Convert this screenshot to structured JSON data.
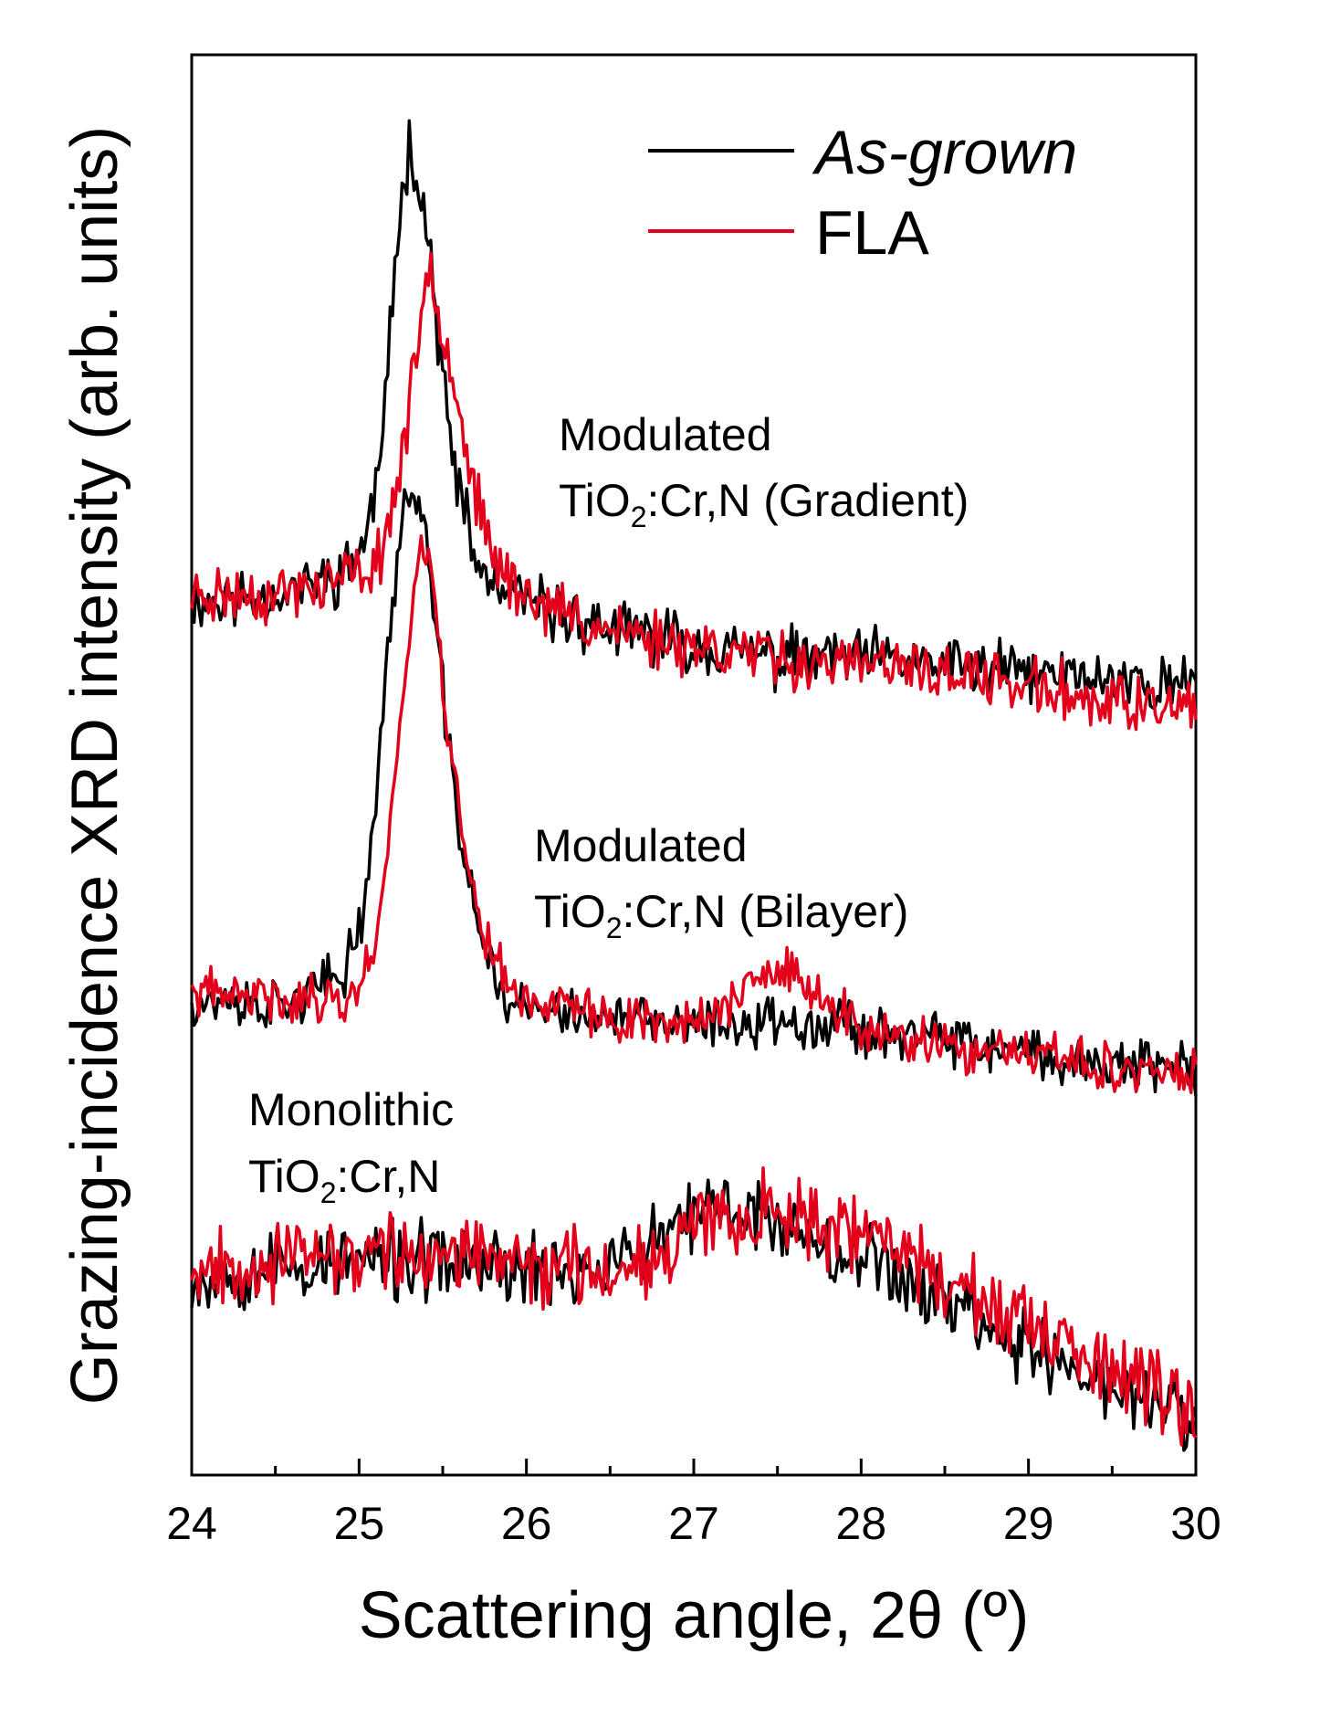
{
  "chart_data": {
    "type": "line",
    "title": "",
    "xlabel": "Scattering angle, 2θ (º)",
    "ylabel": "Grazing-incidence XRD intensity (arb. units)",
    "xlim": [
      24,
      30
    ],
    "ylim": [
      0,
      100
    ],
    "x_ticks": [
      "24",
      "25",
      "26",
      "27",
      "28",
      "29",
      "30"
    ],
    "y_ticks_labeled": false,
    "legend": {
      "position": "top-right",
      "entries": [
        {
          "label": "As-grown",
          "italic": true,
          "color": "#000000"
        },
        {
          "label": "FLA",
          "italic": false,
          "color": "#e3001b"
        }
      ]
    },
    "annotations": [
      {
        "id": "gradient",
        "line1": "Modulated",
        "line2_pre": "TiO",
        "line2_sub": "2",
        "line2_post": ":Cr,N (Gradient)",
        "x": 25.2,
        "y": 71.5
      },
      {
        "id": "bilayer",
        "line1": "Modulated",
        "line2_pre": "TiO",
        "line2_sub": "2",
        "line2_post": ":Cr,N (Bilayer)",
        "x": 25.05,
        "y": 43.5
      },
      {
        "id": "monolithic",
        "line1": "Monolithic",
        "line2_pre": "TiO",
        "line2_sub": "2",
        "line2_post": ":Cr,N",
        "x": 24.35,
        "y": 25.5
      }
    ],
    "series": [
      {
        "name": "As-grown",
        "sample": "Gradient",
        "color": "#000000",
        "noise": 1.6,
        "seed": 11,
        "x": [
          24.0,
          24.5,
          24.9,
          25.05,
          25.15,
          25.22,
          25.3,
          25.38,
          25.45,
          25.55,
          25.7,
          25.85,
          26.0,
          26.5,
          27.0,
          27.5,
          28.0,
          28.5,
          29.0,
          29.5,
          30.0
        ],
        "values": [
          61.5,
          62,
          63.5,
          66,
          74,
          86,
          94,
          90,
          83,
          72,
          64,
          62,
          61.5,
          59.5,
          58.5,
          57.5,
          57.5,
          57,
          56.5,
          56,
          55.5
        ]
      },
      {
        "name": "FLA",
        "sample": "Gradient",
        "color": "#e3001b",
        "noise": 1.6,
        "seed": 23,
        "x": [
          24.0,
          24.5,
          24.9,
          25.1,
          25.2,
          25.3,
          25.35,
          25.42,
          25.5,
          25.6,
          25.75,
          25.9,
          26.05,
          26.5,
          27.0,
          27.5,
          28.0,
          28.5,
          29.0,
          29.5,
          30.0
        ],
        "values": [
          62,
          62,
          63,
          64,
          68,
          75,
          79,
          86,
          81,
          75,
          66,
          63,
          61.5,
          59.5,
          58.5,
          57.5,
          57,
          56.5,
          55.5,
          54.5,
          53.5
        ]
      },
      {
        "name": "As-grown",
        "sample": "Bilayer",
        "color": "#000000",
        "noise": 1.4,
        "seed": 37,
        "x": [
          24.0,
          24.5,
          24.9,
          25.05,
          25.15,
          25.25,
          25.33,
          25.4,
          25.5,
          25.6,
          25.75,
          25.9,
          26.2,
          26.6,
          27.0,
          27.4,
          27.7,
          28.0,
          28.5,
          29.0,
          29.5,
          30.0
        ],
        "values": [
          33.5,
          33,
          35,
          41,
          55,
          67,
          70,
          66,
          55,
          45,
          37,
          33,
          32.5,
          32,
          31.5,
          32,
          32,
          31.5,
          30.5,
          29.5,
          29,
          28.5
        ]
      },
      {
        "name": "FLA",
        "sample": "Bilayer",
        "color": "#e3001b",
        "noise": 1.3,
        "seed": 41,
        "x": [
          24.0,
          24.5,
          24.95,
          25.1,
          25.2,
          25.3,
          25.37,
          25.43,
          25.5,
          25.6,
          25.75,
          25.9,
          26.2,
          26.6,
          27.0,
          27.25,
          27.45,
          27.6,
          27.8,
          28.1,
          28.5,
          29.0,
          29.5,
          30.0
        ],
        "values": [
          34,
          33.5,
          33.5,
          37,
          48,
          59,
          66,
          64,
          56,
          46,
          38,
          34,
          33,
          32,
          32,
          33.5,
          35.5,
          35,
          33,
          31,
          30,
          29.5,
          28.8,
          28
        ]
      },
      {
        "name": "As-grown",
        "sample": "Monolithic",
        "color": "#000000",
        "noise": 2.1,
        "seed": 53,
        "x": [
          24.0,
          24.5,
          25.0,
          25.5,
          26.0,
          26.5,
          26.8,
          27.0,
          27.2,
          27.5,
          27.8,
          28.1,
          28.5,
          29.0,
          29.5,
          30.0
        ],
        "values": [
          14,
          14.5,
          15,
          15,
          14.5,
          14.5,
          16.5,
          18,
          19,
          18,
          16.5,
          15,
          12.5,
          9,
          6,
          4
        ]
      },
      {
        "name": "FLA",
        "sample": "Monolithic",
        "color": "#e3001b",
        "noise": 2.1,
        "seed": 67,
        "x": [
          24.0,
          24.5,
          25.0,
          25.5,
          26.0,
          26.5,
          26.8,
          27.0,
          27.2,
          27.5,
          27.8,
          28.1,
          28.5,
          29.0,
          29.5,
          30.0
        ],
        "values": [
          15,
          15,
          15.5,
          15.5,
          15,
          14.5,
          16,
          17.5,
          18.5,
          18.5,
          17.5,
          16.5,
          14,
          10,
          7,
          4.5
        ]
      }
    ]
  }
}
